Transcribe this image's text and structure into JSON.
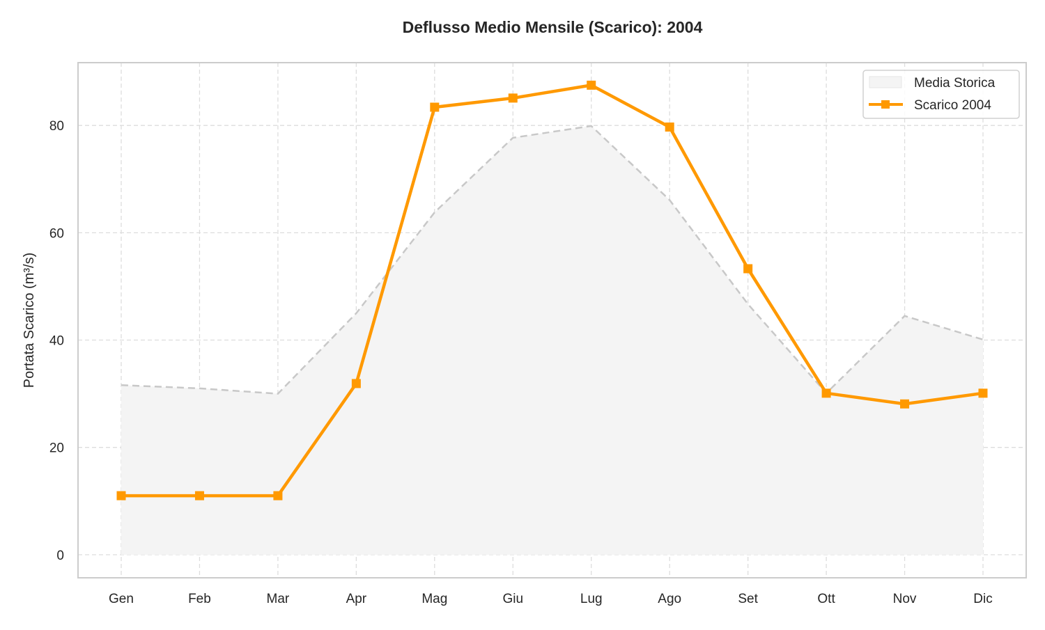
{
  "chart_data": {
    "type": "line",
    "title": "Deflusso Medio Mensile (Scarico): 2004",
    "xlabel": "",
    "ylabel": "Portata Scarico (m³/s)",
    "categories": [
      "Gen",
      "Feb",
      "Mar",
      "Apr",
      "Mag",
      "Giu",
      "Lug",
      "Ago",
      "Set",
      "Ott",
      "Nov",
      "Dic"
    ],
    "ylim": [
      -4.3,
      91.7
    ],
    "yticks": [
      0,
      20,
      40,
      60,
      80
    ],
    "grid": true,
    "legend_position": "top-right",
    "series": [
      {
        "name": "Media Storica",
        "style": "area-dashed",
        "color": "#c8c8c8",
        "fill": "#f4f4f4",
        "values": [
          31.6,
          31.0,
          30.0,
          45.0,
          63.8,
          77.7,
          79.9,
          66.1,
          46.7,
          30.1,
          44.5,
          40.1
        ]
      },
      {
        "name": "Scarico 2004",
        "style": "line-square-markers",
        "color": "#ff9900",
        "values": [
          11.0,
          11.0,
          11.0,
          31.9,
          83.4,
          85.1,
          87.5,
          79.7,
          53.3,
          30.1,
          28.1,
          30.1
        ]
      }
    ]
  }
}
